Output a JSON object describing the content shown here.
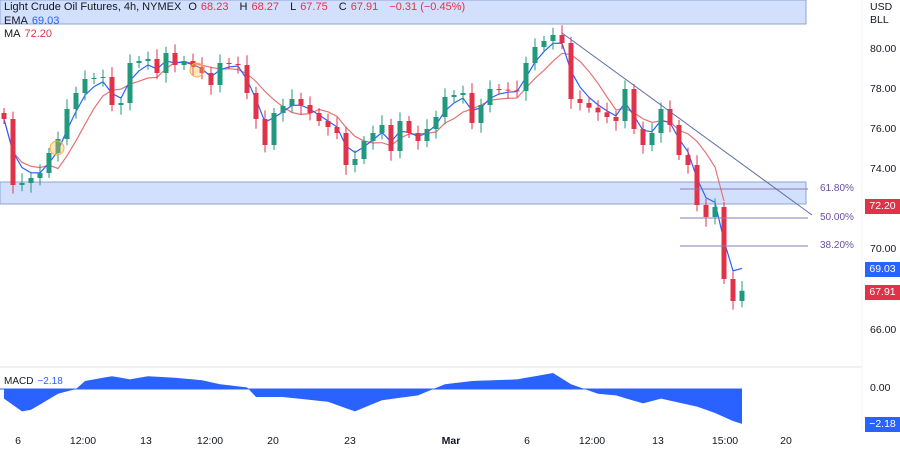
{
  "header": {
    "symbol": "Light Crude Oil Futures, 4h, NYMEX",
    "o_label": "O",
    "o": "68.23",
    "h_label": "H",
    "h": "68.27",
    "l_label": "L",
    "l": "67.75",
    "c_label": "C",
    "c": "67.91",
    "change": "−0.31 (−0.45%)"
  },
  "indicators": {
    "ema_label": "EMA",
    "ema_value": "69.03",
    "ma_label": "MA",
    "ma_value": "72.20",
    "macd_label": "MACD",
    "macd_value": "−2.18"
  },
  "axis": {
    "currency": "USD",
    "unit": "BLL",
    "price_ticks": [
      "80.00",
      "78.00",
      "76.00",
      "74.00",
      "70.00",
      "66.00"
    ],
    "macd_ticks": [
      "0.00"
    ],
    "time_ticks": [
      "6",
      "12:00",
      "13",
      "12:00",
      "20",
      "23",
      "Mar",
      "6",
      "12:00",
      "13",
      "15:00",
      "20"
    ]
  },
  "tags": {
    "ma": "72.20",
    "ema": "69.03",
    "last": "67.91",
    "macd": "−2.18"
  },
  "fib": [
    "61.80%",
    "50.00%",
    "38.20%"
  ],
  "colors": {
    "up": "#22997e",
    "down": "#e0334a",
    "ema": "#2962ff",
    "ma": "#e57373",
    "zone": "#d3e0fd",
    "macd": "#2962ff"
  },
  "chart_data": {
    "type": "candlestick",
    "title": "Light Crude Oil Futures, 4h, NYMEX",
    "ylim": [
      65,
      81.5
    ],
    "close_keypoints": [
      [
        0,
        76.5
      ],
      [
        1,
        73.2
      ],
      [
        2,
        73.3
      ],
      [
        4,
        73.8
      ],
      [
        5,
        74.8
      ],
      [
        6,
        75.5
      ],
      [
        7,
        77
      ],
      [
        8,
        77.8
      ],
      [
        9,
        78.5
      ],
      [
        11,
        78.6
      ],
      [
        12,
        77.2
      ],
      [
        13,
        77.3
      ],
      [
        14,
        79.3
      ],
      [
        16,
        79.5
      ],
      [
        17,
        78.8
      ],
      [
        18,
        79.8
      ],
      [
        19,
        79.2
      ],
      [
        20,
        79.4
      ],
      [
        22,
        78.8
      ],
      [
        23,
        78.2
      ],
      [
        24,
        79.3
      ],
      [
        26,
        79.2
      ],
      [
        27,
        77.8
      ],
      [
        29,
        75.2
      ],
      [
        30,
        76.8
      ],
      [
        32,
        77.5
      ],
      [
        33,
        77.2
      ],
      [
        35,
        76.4
      ],
      [
        37,
        75.8
      ],
      [
        38,
        74.2
      ],
      [
        39,
        74.5
      ],
      [
        40,
        75.4
      ],
      [
        42,
        76.2
      ],
      [
        43,
        74.9
      ],
      [
        44,
        76.4
      ],
      [
        45,
        75.8
      ],
      [
        46,
        75.4
      ],
      [
        48,
        76.6
      ],
      [
        49,
        77.6
      ],
      [
        51,
        77.8
      ],
      [
        52,
        76.3
      ],
      [
        53,
        77.2
      ],
      [
        54,
        78
      ],
      [
        57,
        77.9
      ],
      [
        58,
        79.3
      ],
      [
        59,
        80.1
      ],
      [
        61,
        80.7
      ],
      [
        62,
        80.3
      ],
      [
        63,
        77.5
      ],
      [
        64,
        77.3
      ],
      [
        67,
        76.6
      ],
      [
        68,
        76.4
      ],
      [
        69,
        78
      ],
      [
        70,
        76
      ],
      [
        71,
        75.2
      ],
      [
        72,
        75.8
      ],
      [
        73,
        77
      ],
      [
        74,
        76.2
      ],
      [
        75,
        74.7
      ],
      [
        76,
        74.2
      ],
      [
        77,
        72.2
      ],
      [
        78,
        71.6
      ],
      [
        79,
        72.1
      ],
      [
        80,
        68.5
      ],
      [
        81,
        67.4
      ],
      [
        82,
        67.91
      ]
    ],
    "macd_keypoints": [
      [
        0,
        -0.6
      ],
      [
        2,
        -1.4
      ],
      [
        3,
        -1.3
      ],
      [
        6,
        -0.3
      ],
      [
        8,
        0
      ],
      [
        9,
        0.5
      ],
      [
        12,
        0.8
      ],
      [
        14,
        0.6
      ],
      [
        16,
        0.8
      ],
      [
        19,
        0.7
      ],
      [
        22,
        0.55
      ],
      [
        24,
        0.3
      ],
      [
        27,
        0.1
      ],
      [
        28,
        -0.5
      ],
      [
        31,
        -0.5
      ],
      [
        36,
        -0.8
      ],
      [
        39,
        -1.4
      ],
      [
        42,
        -0.7
      ],
      [
        46,
        -0.4
      ],
      [
        49,
        0.3
      ],
      [
        52,
        0.5
      ],
      [
        57,
        0.6
      ],
      [
        59,
        0.8
      ],
      [
        61,
        1.0
      ],
      [
        63,
        0.3
      ],
      [
        66,
        -0.3
      ],
      [
        68,
        -0.4
      ],
      [
        71,
        -0.9
      ],
      [
        73,
        -0.6
      ],
      [
        77,
        -1.1
      ],
      [
        79,
        -1.5
      ],
      [
        81,
        -2.0
      ],
      [
        82,
        -2.18
      ]
    ],
    "ema_last": 69.03,
    "ma_last": 72.2,
    "fib_levels": [
      {
        "label": "61.80%",
        "price": 73.0
      },
      {
        "label": "50.00%",
        "price": 71.55
      },
      {
        "label": "38.20%",
        "price": 70.15
      }
    ],
    "support_zone": [
      72.25,
      73.35
    ],
    "resistance_zone_top": 81.3
  }
}
